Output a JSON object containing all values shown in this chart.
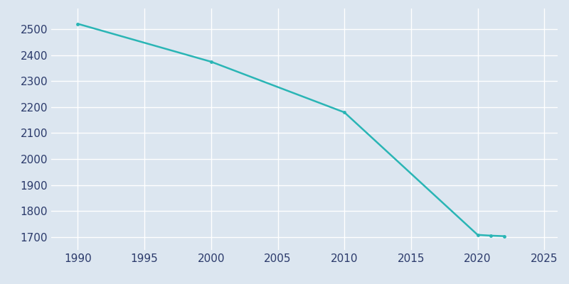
{
  "years": [
    1990,
    2000,
    2010,
    2020,
    2021,
    2022
  ],
  "population": [
    2521,
    2375,
    2180,
    1708,
    1705,
    1703
  ],
  "line_color": "#2ab5b5",
  "marker_color": "#2ab5b5",
  "background_color": "#dce6f0",
  "grid_color": "#c8d4e3",
  "tick_label_color": "#2b3a6b",
  "xlim": [
    1988,
    2026
  ],
  "ylim": [
    1650,
    2580
  ],
  "xticks": [
    1990,
    1995,
    2000,
    2005,
    2010,
    2015,
    2020,
    2025
  ],
  "yticks": [
    1700,
    1800,
    1900,
    2000,
    2100,
    2200,
    2300,
    2400,
    2500
  ],
  "figsize": [
    8.0,
    4.0
  ],
  "dpi": 100
}
